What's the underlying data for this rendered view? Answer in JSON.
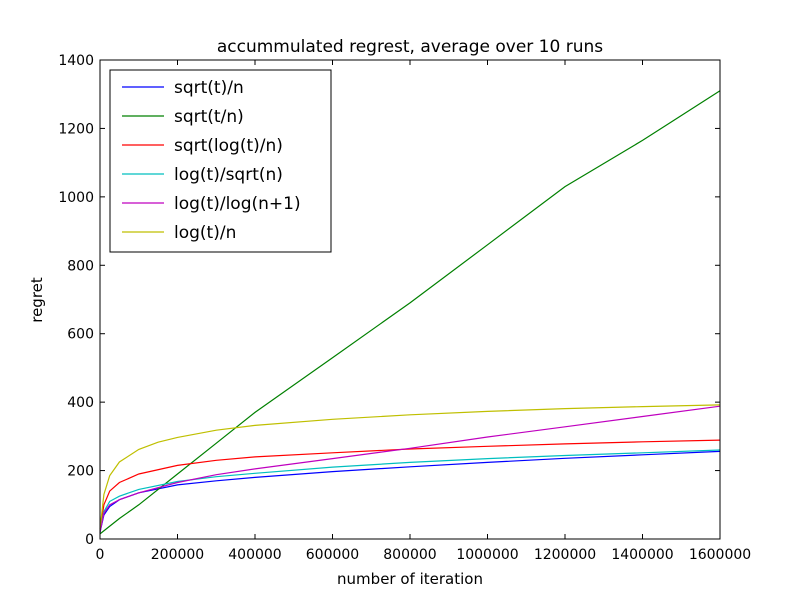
{
  "chart_data": {
    "type": "line",
    "title": "accummulated regrest, average over 10 runs",
    "xlabel": "number of iteration",
    "ylabel": "regret",
    "xlim": [
      0,
      1600000
    ],
    "ylim": [
      0,
      1400
    ],
    "xticks": [
      0,
      200000,
      400000,
      600000,
      800000,
      1000000,
      1200000,
      1400000,
      1600000
    ],
    "yticks": [
      0,
      200,
      400,
      600,
      800,
      1000,
      1200,
      1400
    ],
    "grid": false,
    "legend_position": "top-left",
    "series": [
      {
        "name": "sqrt(t)/n",
        "color": "#0000ff",
        "x": [
          0,
          10000,
          25000,
          50000,
          100000,
          200000,
          300000,
          400000,
          600000,
          800000,
          1000000,
          1200000,
          1400000,
          1600000
        ],
        "y": [
          20,
          70,
          95,
          115,
          135,
          158,
          170,
          180,
          197,
          211,
          224,
          236,
          246,
          256
        ]
      },
      {
        "name": "sqrt(t/n)",
        "color": "#008000",
        "x": [
          0,
          50000,
          100000,
          200000,
          300000,
          400000,
          600000,
          800000,
          1000000,
          1200000,
          1400000,
          1600000
        ],
        "y": [
          15,
          60,
          100,
          190,
          280,
          370,
          530,
          690,
          860,
          1030,
          1165,
          1310
        ]
      },
      {
        "name": "sqrt(log(t)/n)",
        "color": "#ff0000",
        "x": [
          0,
          10000,
          25000,
          50000,
          100000,
          200000,
          300000,
          400000,
          600000,
          800000,
          1000000,
          1200000,
          1400000,
          1600000
        ],
        "y": [
          25,
          100,
          140,
          165,
          190,
          215,
          230,
          240,
          252,
          263,
          271,
          278,
          284,
          289
        ]
      },
      {
        "name": "log(t)/sqrt(n)",
        "color": "#00bfbf",
        "x": [
          0,
          10000,
          25000,
          50000,
          100000,
          200000,
          300000,
          400000,
          600000,
          800000,
          1000000,
          1200000,
          1400000,
          1600000
        ],
        "y": [
          20,
          80,
          110,
          125,
          145,
          168,
          182,
          192,
          210,
          224,
          235,
          244,
          252,
          260
        ]
      },
      {
        "name": "log(t)/log(n+1)",
        "color": "#bf00bf",
        "x": [
          0,
          10000,
          25000,
          50000,
          100000,
          200000,
          300000,
          400000,
          600000,
          800000,
          1000000,
          1200000,
          1400000,
          1600000
        ],
        "y": [
          20,
          75,
          100,
          115,
          135,
          165,
          188,
          205,
          235,
          265,
          298,
          328,
          358,
          388
        ]
      },
      {
        "name": "log(t)/n",
        "color": "#bfbf00",
        "x": [
          0,
          10000,
          25000,
          50000,
          100000,
          150000,
          200000,
          300000,
          400000,
          600000,
          800000,
          1000000,
          1200000,
          1400000,
          1600000
        ],
        "y": [
          30,
          130,
          185,
          225,
          262,
          283,
          297,
          318,
          332,
          350,
          363,
          373,
          381,
          387,
          392
        ]
      }
    ]
  }
}
